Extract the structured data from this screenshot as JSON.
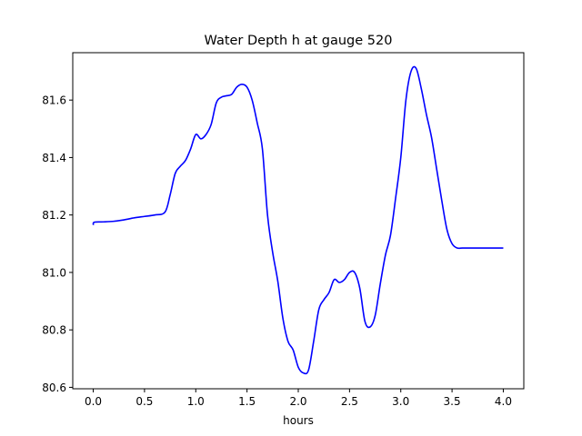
{
  "chart_data": {
    "type": "line",
    "title": "Water Depth h at gauge 520",
    "xlabel": "hours",
    "ylabel": "",
    "xlim": [
      -0.2,
      4.2
    ],
    "ylim": [
      80.595,
      81.765
    ],
    "grid": false,
    "x_ticks": [
      0.0,
      0.5,
      1.0,
      1.5,
      2.0,
      2.5,
      3.0,
      3.5,
      4.0
    ],
    "x_tick_labels": [
      "0.0",
      "0.5",
      "1.0",
      "1.5",
      "2.0",
      "2.5",
      "3.0",
      "3.5",
      "4.0"
    ],
    "y_ticks": [
      80.6,
      80.8,
      81.0,
      81.2,
      81.4,
      81.6
    ],
    "y_tick_labels": [
      "80.6",
      "80.8",
      "81.0",
      "81.2",
      "81.4",
      "81.6"
    ],
    "series": [
      {
        "color": "#0000ff",
        "x": [
          0.0,
          0.01,
          0.1,
          0.2,
          0.3,
          0.4,
          0.5,
          0.6,
          0.7,
          0.75,
          0.8,
          0.85,
          0.9,
          0.95,
          1.0,
          1.05,
          1.1,
          1.15,
          1.2,
          1.25,
          1.3,
          1.35,
          1.4,
          1.45,
          1.5,
          1.55,
          1.6,
          1.65,
          1.7,
          1.75,
          1.8,
          1.85,
          1.9,
          1.95,
          2.0,
          2.05,
          2.1,
          2.15,
          2.2,
          2.25,
          2.3,
          2.35,
          2.4,
          2.45,
          2.5,
          2.55,
          2.6,
          2.65,
          2.7,
          2.75,
          2.8,
          2.85,
          2.9,
          2.95,
          3.0,
          3.05,
          3.1,
          3.15,
          3.2,
          3.25,
          3.3,
          3.35,
          3.4,
          3.45,
          3.5,
          3.55,
          3.6,
          3.65,
          3.7,
          3.75,
          3.8,
          3.85,
          3.9,
          3.95,
          4.0
        ],
        "values": [
          81.165,
          81.175,
          81.176,
          81.178,
          81.183,
          81.19,
          81.195,
          81.2,
          81.21,
          81.27,
          81.345,
          81.37,
          81.39,
          81.43,
          81.48,
          81.465,
          81.48,
          81.515,
          81.59,
          81.61,
          81.615,
          81.62,
          81.645,
          81.655,
          81.645,
          81.6,
          81.52,
          81.43,
          81.2,
          81.07,
          80.97,
          80.84,
          80.76,
          80.73,
          80.67,
          80.65,
          80.66,
          80.76,
          80.87,
          80.905,
          80.93,
          80.975,
          80.965,
          80.975,
          81.0,
          81.0,
          80.945,
          80.83,
          80.81,
          80.85,
          80.96,
          81.06,
          81.13,
          81.26,
          81.4,
          81.6,
          81.7,
          81.71,
          81.64,
          81.55,
          81.47,
          81.36,
          81.25,
          81.15,
          81.1,
          81.085,
          81.085,
          81.085,
          81.085,
          81.085,
          81.085,
          81.085,
          81.085,
          81.085,
          81.085
        ]
      }
    ]
  }
}
